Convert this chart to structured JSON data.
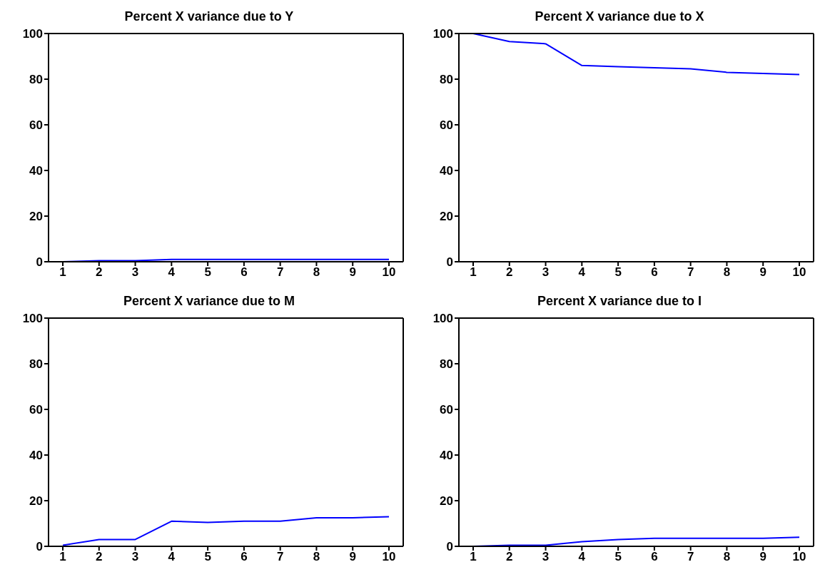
{
  "chart_data": [
    {
      "type": "line",
      "title": "Percent X variance due to Y",
      "categories": [
        "1",
        "2",
        "3",
        "4",
        "5",
        "6",
        "7",
        "8",
        "9",
        "10"
      ],
      "ylim": [
        0,
        100
      ],
      "yticks": [
        0,
        20,
        40,
        60,
        80,
        100
      ],
      "series": [
        {
          "color": "#0000ff",
          "values": [
            0,
            0.5,
            0.5,
            1,
            1,
            1,
            1,
            1,
            1,
            1
          ]
        }
      ]
    },
    {
      "type": "line",
      "title": "Percent X variance due to X",
      "categories": [
        "1",
        "2",
        "3",
        "4",
        "5",
        "6",
        "7",
        "8",
        "9",
        "10"
      ],
      "ylim": [
        0,
        100
      ],
      "yticks": [
        0,
        20,
        40,
        60,
        80,
        100
      ],
      "series": [
        {
          "color": "#0000ff",
          "values": [
            100,
            96.5,
            95.5,
            86,
            85.5,
            85,
            84.5,
            83,
            82.5,
            82
          ]
        }
      ]
    },
    {
      "type": "line",
      "title": "Percent X variance due to M",
      "categories": [
        "1",
        "2",
        "3",
        "4",
        "5",
        "6",
        "7",
        "8",
        "9",
        "10"
      ],
      "ylim": [
        0,
        100
      ],
      "yticks": [
        0,
        20,
        40,
        60,
        80,
        100
      ],
      "series": [
        {
          "color": "#0000ff",
          "values": [
            0.5,
            3,
            3,
            11,
            10.5,
            11,
            11,
            12.5,
            12.5,
            13
          ]
        }
      ]
    },
    {
      "type": "line",
      "title": "Percent X variance due to I",
      "categories": [
        "1",
        "2",
        "3",
        "4",
        "5",
        "6",
        "7",
        "8",
        "9",
        "10"
      ],
      "ylim": [
        0,
        100
      ],
      "yticks": [
        0,
        20,
        40,
        60,
        80,
        100
      ],
      "series": [
        {
          "color": "#0000ff",
          "values": [
            0,
            0.5,
            0.5,
            2,
            3,
            3.5,
            3.5,
            3.5,
            3.5,
            4
          ]
        }
      ]
    }
  ]
}
